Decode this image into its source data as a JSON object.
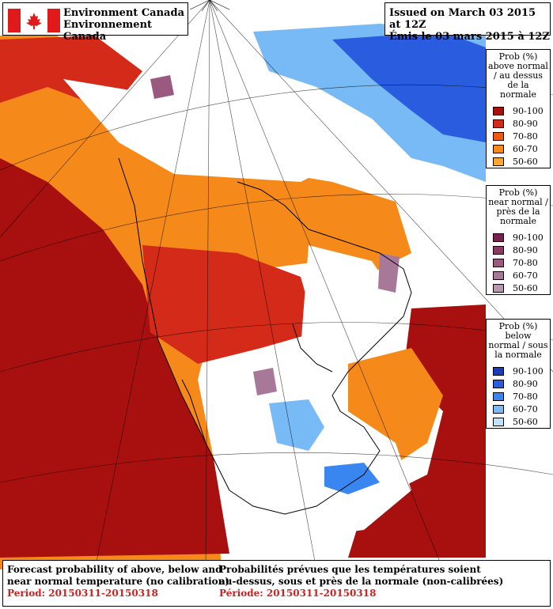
{
  "header": {
    "org_en": "Environment Canada",
    "org_fr": "Environnement Canada",
    "issued_en": "Issued on March 03 2015 at 12Z",
    "issued_fr": "Émis le 03 mars 2015 à 12Z"
  },
  "legends": [
    {
      "title": "Prob (%) above normal / au dessus de la normale",
      "items": [
        {
          "label": "90-100",
          "color": "#a81010"
        },
        {
          "label": "80-90",
          "color": "#d42a1a"
        },
        {
          "label": "70-80",
          "color": "#ec5a12"
        },
        {
          "label": "60-70",
          "color": "#f58a1a"
        },
        {
          "label": "50-60",
          "color": "#f8a830"
        }
      ]
    },
    {
      "title": "Prob (%) near normal / près de la normale",
      "items": [
        {
          "label": "90-100",
          "color": "#7a2050"
        },
        {
          "label": "80-90",
          "color": "#8a3a64"
        },
        {
          "label": "70-80",
          "color": "#9a5a80"
        },
        {
          "label": "60-70",
          "color": "#a87898"
        },
        {
          "label": "50-60",
          "color": "#b898b0"
        }
      ]
    },
    {
      "title": "Prob (%) below normal / sous la normale",
      "items": [
        {
          "label": "90-100",
          "color": "#1a3cb8"
        },
        {
          "label": "80-90",
          "color": "#2a5ce0"
        },
        {
          "label": "70-80",
          "color": "#3a86f0"
        },
        {
          "label": "60-70",
          "color": "#78baf5"
        },
        {
          "label": "50-60",
          "color": "#c0e2fa"
        }
      ]
    }
  ],
  "footer": {
    "en_line1": "Forecast probability of above, below and",
    "en_line2": "near normal temperature (no calibration)",
    "en_period": "Period: 20150311-20150318",
    "fr_line1": "Probabilités prévues que les températures soient",
    "fr_line2": "au-dessus, sous et près de la normale (non-calibrées)",
    "fr_period": "Période: 20150311-20150318"
  }
}
